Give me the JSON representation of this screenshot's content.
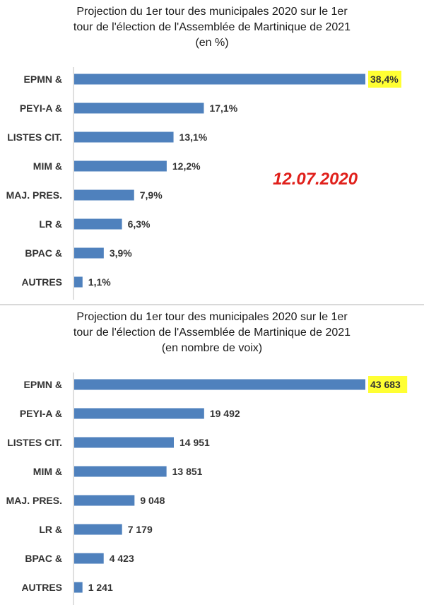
{
  "stamp": "12.07.2020",
  "chart_data": [
    {
      "type": "bar",
      "orientation": "horizontal",
      "title_lines": [
        "Projection du 1er tour des municipales 2020 sur le 1er",
        "tour de l'élection de l'Assemblée de Martinique de 2021",
        "(en %)"
      ],
      "categories": [
        "EPMN &",
        "PEYI-A &",
        "LISTES CIT.",
        "MIM &",
        "MAJ. PRES.",
        "LR &",
        "BPAC &",
        "AUTRES"
      ],
      "values": [
        38.4,
        17.1,
        13.1,
        12.2,
        7.9,
        6.3,
        3.9,
        1.1
      ],
      "value_labels": [
        "38,4%",
        "17,1%",
        "13,1%",
        "12,2%",
        "7,9%",
        "6,3%",
        "3,9%",
        "1,1%"
      ],
      "highlighted": [
        0
      ],
      "xlim": [
        0,
        38.4
      ],
      "bar_color": "#4f81bd",
      "highlight_color": "#ffff33"
    },
    {
      "type": "bar",
      "orientation": "horizontal",
      "title_lines": [
        "Projection du 1er tour des municipales 2020 sur le 1er",
        "tour de l'élection de l'Assemblée de Martinique de 2021",
        "(en nombre de voix)"
      ],
      "categories": [
        "EPMN &",
        "PEYI-A &",
        "LISTES CIT.",
        "MIM &",
        "MAJ. PRES.",
        "LR &",
        "BPAC &",
        "AUTRES"
      ],
      "values": [
        43683,
        19492,
        14951,
        13851,
        9048,
        7179,
        4423,
        1241
      ],
      "value_labels": [
        "43 683",
        "19 492",
        "14 951",
        "13 851",
        "9 048",
        "7 179",
        "4 423",
        "1 241"
      ],
      "highlighted": [
        0
      ],
      "xlim": [
        0,
        43683
      ],
      "bar_color": "#4f81bd",
      "highlight_color": "#ffff33"
    }
  ]
}
